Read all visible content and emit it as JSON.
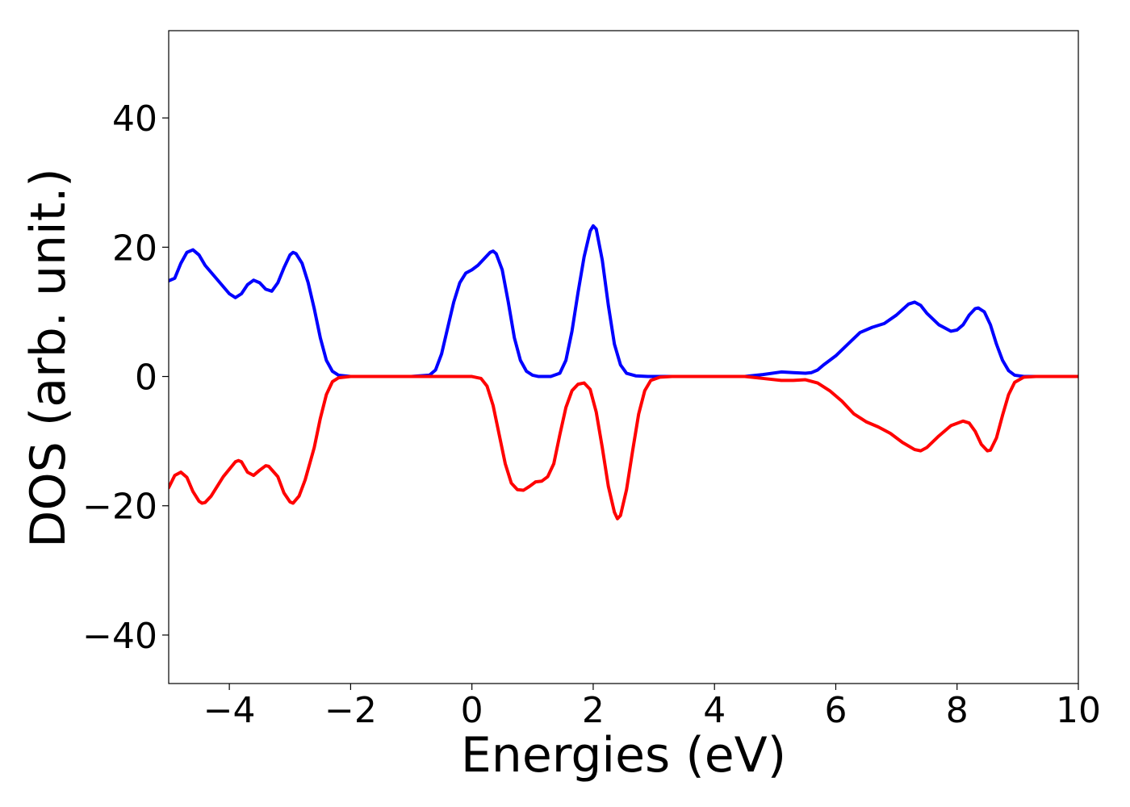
{
  "chart_data": {
    "type": "line",
    "title": "",
    "xlabel": "Energies (eV)",
    "ylabel": "DOS (arb. unit.)",
    "xlim": [
      -5,
      10
    ],
    "ylim": [
      -47.5,
      53.5
    ],
    "xticks": [
      -4,
      -2,
      0,
      2,
      4,
      6,
      8,
      10
    ],
    "yticks": [
      -40,
      -20,
      0,
      20,
      40
    ],
    "xtick_labels": [
      "−4",
      "−2",
      "0",
      "2",
      "4",
      "6",
      "8",
      "10"
    ],
    "ytick_labels": [
      "−40",
      "−20",
      "0",
      "20",
      "40"
    ],
    "grid": false,
    "legend": null,
    "series": [
      {
        "color": "#0000ff",
        "points": [
          [
            -5.0,
            14.8
          ],
          [
            -4.9,
            15.2
          ],
          [
            -4.8,
            17.5
          ],
          [
            -4.7,
            19.2
          ],
          [
            -4.6,
            19.6
          ],
          [
            -4.5,
            18.8
          ],
          [
            -4.4,
            17.2
          ],
          [
            -4.2,
            15.0
          ],
          [
            -4.0,
            12.8
          ],
          [
            -3.9,
            12.2
          ],
          [
            -3.8,
            12.8
          ],
          [
            -3.7,
            14.2
          ],
          [
            -3.6,
            14.9
          ],
          [
            -3.5,
            14.5
          ],
          [
            -3.4,
            13.5
          ],
          [
            -3.3,
            13.2
          ],
          [
            -3.2,
            14.5
          ],
          [
            -3.1,
            16.8
          ],
          [
            -3.0,
            18.8
          ],
          [
            -2.95,
            19.2
          ],
          [
            -2.9,
            19.0
          ],
          [
            -2.8,
            17.5
          ],
          [
            -2.7,
            14.5
          ],
          [
            -2.6,
            10.5
          ],
          [
            -2.5,
            6.0
          ],
          [
            -2.4,
            2.5
          ],
          [
            -2.3,
            0.8
          ],
          [
            -2.2,
            0.2
          ],
          [
            -2.0,
            0.0
          ],
          [
            -1.0,
            0.0
          ],
          [
            -0.7,
            0.2
          ],
          [
            -0.6,
            1.0
          ],
          [
            -0.5,
            3.5
          ],
          [
            -0.4,
            7.5
          ],
          [
            -0.3,
            11.5
          ],
          [
            -0.2,
            14.5
          ],
          [
            -0.1,
            16.0
          ],
          [
            0.0,
            16.5
          ],
          [
            0.1,
            17.2
          ],
          [
            0.2,
            18.2
          ],
          [
            0.3,
            19.2
          ],
          [
            0.35,
            19.4
          ],
          [
            0.4,
            19.0
          ],
          [
            0.5,
            16.5
          ],
          [
            0.6,
            11.5
          ],
          [
            0.7,
            6.0
          ],
          [
            0.8,
            2.5
          ],
          [
            0.9,
            0.8
          ],
          [
            1.0,
            0.2
          ],
          [
            1.1,
            0.0
          ],
          [
            1.3,
            0.0
          ],
          [
            1.45,
            0.5
          ],
          [
            1.55,
            2.5
          ],
          [
            1.65,
            7.0
          ],
          [
            1.75,
            13.0
          ],
          [
            1.85,
            18.5
          ],
          [
            1.95,
            22.5
          ],
          [
            2.0,
            23.3
          ],
          [
            2.05,
            22.8
          ],
          [
            2.15,
            18.0
          ],
          [
            2.25,
            11.0
          ],
          [
            2.35,
            5.0
          ],
          [
            2.45,
            1.8
          ],
          [
            2.55,
            0.5
          ],
          [
            2.7,
            0.1
          ],
          [
            2.9,
            0.0
          ],
          [
            4.5,
            0.0
          ],
          [
            4.8,
            0.3
          ],
          [
            5.1,
            0.7
          ],
          [
            5.3,
            0.6
          ],
          [
            5.5,
            0.5
          ],
          [
            5.6,
            0.6
          ],
          [
            5.7,
            1.0
          ],
          [
            5.8,
            1.8
          ],
          [
            6.0,
            3.2
          ],
          [
            6.2,
            5.0
          ],
          [
            6.4,
            6.8
          ],
          [
            6.6,
            7.6
          ],
          [
            6.8,
            8.2
          ],
          [
            7.0,
            9.5
          ],
          [
            7.2,
            11.2
          ],
          [
            7.3,
            11.5
          ],
          [
            7.4,
            11.0
          ],
          [
            7.5,
            9.8
          ],
          [
            7.7,
            8.0
          ],
          [
            7.9,
            7.0
          ],
          [
            8.0,
            7.2
          ],
          [
            8.1,
            8.0
          ],
          [
            8.2,
            9.5
          ],
          [
            8.3,
            10.5
          ],
          [
            8.35,
            10.6
          ],
          [
            8.45,
            10.0
          ],
          [
            8.55,
            8.0
          ],
          [
            8.65,
            5.0
          ],
          [
            8.75,
            2.5
          ],
          [
            8.85,
            0.9
          ],
          [
            8.95,
            0.2
          ],
          [
            9.1,
            0.0
          ],
          [
            10.0,
            0.0
          ]
        ]
      },
      {
        "color": "#ff0000",
        "points": [
          [
            -5.0,
            -17.2
          ],
          [
            -4.9,
            -15.3
          ],
          [
            -4.8,
            -14.8
          ],
          [
            -4.7,
            -15.6
          ],
          [
            -4.6,
            -17.8
          ],
          [
            -4.5,
            -19.3
          ],
          [
            -4.45,
            -19.6
          ],
          [
            -4.4,
            -19.5
          ],
          [
            -4.3,
            -18.5
          ],
          [
            -4.1,
            -15.5
          ],
          [
            -3.9,
            -13.2
          ],
          [
            -3.85,
            -13.0
          ],
          [
            -3.8,
            -13.2
          ],
          [
            -3.7,
            -14.8
          ],
          [
            -3.6,
            -15.3
          ],
          [
            -3.5,
            -14.5
          ],
          [
            -3.4,
            -13.8
          ],
          [
            -3.35,
            -13.9
          ],
          [
            -3.2,
            -15.5
          ],
          [
            -3.1,
            -18.0
          ],
          [
            -3.0,
            -19.4
          ],
          [
            -2.95,
            -19.6
          ],
          [
            -2.85,
            -18.5
          ],
          [
            -2.75,
            -16.0
          ],
          [
            -2.6,
            -11.0
          ],
          [
            -2.5,
            -6.5
          ],
          [
            -2.4,
            -2.8
          ],
          [
            -2.3,
            -0.8
          ],
          [
            -2.2,
            -0.2
          ],
          [
            -2.0,
            0.0
          ],
          [
            0.0,
            0.0
          ],
          [
            0.15,
            -0.3
          ],
          [
            0.25,
            -1.5
          ],
          [
            0.35,
            -4.5
          ],
          [
            0.45,
            -9.0
          ],
          [
            0.55,
            -13.5
          ],
          [
            0.65,
            -16.5
          ],
          [
            0.75,
            -17.5
          ],
          [
            0.85,
            -17.6
          ],
          [
            0.95,
            -17.0
          ],
          [
            1.05,
            -16.3
          ],
          [
            1.15,
            -16.2
          ],
          [
            1.25,
            -15.5
          ],
          [
            1.35,
            -13.5
          ],
          [
            1.45,
            -9.0
          ],
          [
            1.55,
            -4.8
          ],
          [
            1.65,
            -2.2
          ],
          [
            1.75,
            -1.2
          ],
          [
            1.85,
            -1.0
          ],
          [
            1.95,
            -2.0
          ],
          [
            2.05,
            -5.5
          ],
          [
            2.15,
            -11.0
          ],
          [
            2.25,
            -17.0
          ],
          [
            2.35,
            -21.0
          ],
          [
            2.4,
            -22.0
          ],
          [
            2.45,
            -21.5
          ],
          [
            2.55,
            -17.5
          ],
          [
            2.65,
            -11.5
          ],
          [
            2.75,
            -5.8
          ],
          [
            2.85,
            -2.2
          ],
          [
            2.95,
            -0.6
          ],
          [
            3.1,
            -0.1
          ],
          [
            3.3,
            0.0
          ],
          [
            4.5,
            0.0
          ],
          [
            4.8,
            -0.3
          ],
          [
            5.1,
            -0.6
          ],
          [
            5.3,
            -0.6
          ],
          [
            5.5,
            -0.5
          ],
          [
            5.7,
            -1.0
          ],
          [
            5.9,
            -2.2
          ],
          [
            6.1,
            -3.8
          ],
          [
            6.3,
            -5.8
          ],
          [
            6.5,
            -7.0
          ],
          [
            6.7,
            -7.8
          ],
          [
            6.9,
            -8.8
          ],
          [
            7.1,
            -10.2
          ],
          [
            7.3,
            -11.3
          ],
          [
            7.4,
            -11.5
          ],
          [
            7.5,
            -11.0
          ],
          [
            7.7,
            -9.2
          ],
          [
            7.9,
            -7.6
          ],
          [
            8.1,
            -6.9
          ],
          [
            8.2,
            -7.2
          ],
          [
            8.3,
            -8.5
          ],
          [
            8.4,
            -10.5
          ],
          [
            8.5,
            -11.5
          ],
          [
            8.55,
            -11.4
          ],
          [
            8.65,
            -9.5
          ],
          [
            8.75,
            -6.0
          ],
          [
            8.85,
            -2.8
          ],
          [
            8.95,
            -0.9
          ],
          [
            9.1,
            -0.1
          ],
          [
            9.3,
            0.0
          ],
          [
            10.0,
            0.0
          ]
        ]
      }
    ]
  }
}
